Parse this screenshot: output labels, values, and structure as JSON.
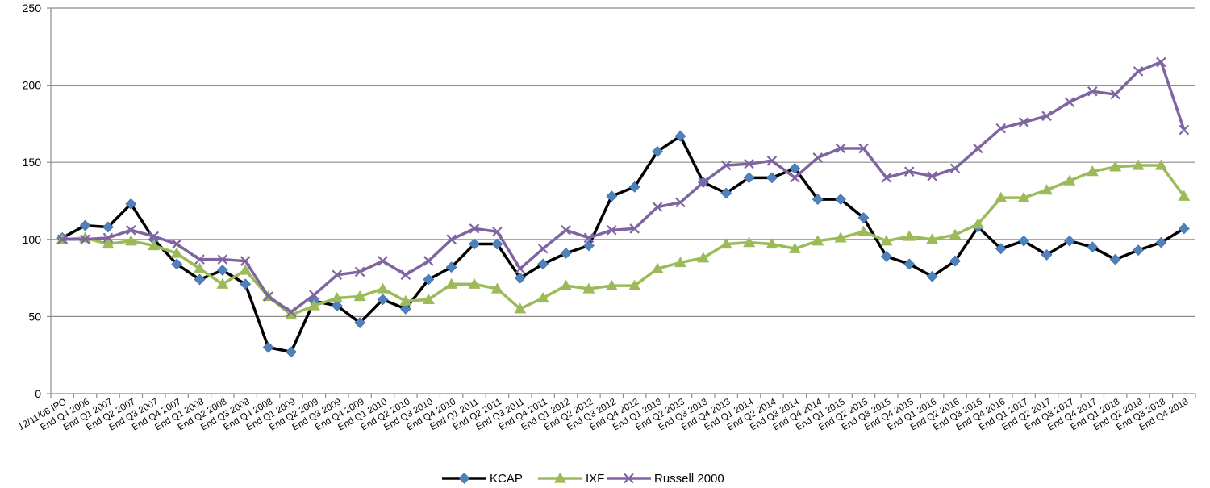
{
  "chart_data": {
    "type": "line",
    "title": "",
    "xlabel": "",
    "ylabel": "",
    "ylim": [
      0,
      250
    ],
    "yticks": [
      0,
      50,
      100,
      150,
      200,
      250
    ],
    "grid": "horizontal",
    "legend_position": "bottom",
    "categories": [
      "12/11/06 IPO",
      "End Q4 2006",
      "End Q1 2007",
      "End Q2 2007",
      "End Q3 2007",
      "End Q4 2007",
      "End Q1 2008",
      "End Q2 2008",
      "End Q3 2008",
      "End Q4 2008",
      "End Q1 2009",
      "End Q2 2009",
      "End Q3 2009",
      "End Q4 2009",
      "End Q1 2010",
      "End Q2 2010",
      "End Q3 2010",
      "End Q4 2010",
      "End Q1 2011",
      "End Q2 2011",
      "End Q3 2011",
      "End Q4 2011",
      "End Q1 2012",
      "End Q2 2012",
      "End Q3 2012",
      "End Q4 2012",
      "End Q1 2013",
      "End Q2 2013",
      "End Q3 2013",
      "End Q4 2013",
      "End Q1 2014",
      "End Q2 2014",
      "End Q3 2014",
      "End Q4 2014",
      "End Q1 2015",
      "End Q2 2015",
      "End Q3 2015",
      "End Q4 2015",
      "End Q1 2016",
      "End Q2 2016",
      "End Q3 2016",
      "End Q4 2016",
      "End Q1 2017",
      "End Q2 2017",
      "End Q3 2017",
      "End Q4 2017",
      "End Q1 2018",
      "End Q2 2018",
      "End Q3 2018",
      "End Q4 2018"
    ],
    "series": [
      {
        "name": "KCAP",
        "color": "#000000",
        "marker_color": "#4F81BD",
        "marker": "diamond",
        "values": [
          101,
          109,
          108,
          123,
          100,
          84,
          74,
          80,
          71,
          30,
          27,
          60,
          57,
          46,
          61,
          55,
          74,
          82,
          97,
          97,
          75,
          84,
          91,
          96,
          128,
          134,
          157,
          167,
          137,
          130,
          140,
          140,
          146,
          126,
          126,
          114,
          89,
          84,
          76,
          86,
          108,
          94,
          99,
          90,
          99,
          95,
          87,
          93,
          98,
          107
        ]
      },
      {
        "name": "IXF",
        "color": "#9BBB59",
        "marker_color": "#9BBB59",
        "marker": "triangle",
        "values": [
          100,
          101,
          97,
          99,
          96,
          91,
          81,
          71,
          80,
          63,
          51,
          57,
          62,
          63,
          68,
          60,
          61,
          71,
          71,
          68,
          55,
          62,
          70,
          68,
          70,
          70,
          81,
          85,
          88,
          97,
          98,
          97,
          94,
          99,
          101,
          105,
          99,
          102,
          100,
          103,
          110,
          127,
          127,
          132,
          138,
          144,
          147,
          148,
          148,
          128
        ]
      },
      {
        "name": "Russell 2000",
        "color": "#8064A2",
        "marker_color": "#8064A2",
        "marker": "x",
        "values": [
          100,
          100,
          101,
          106,
          102,
          97,
          87,
          87,
          86,
          63,
          53,
          64,
          77,
          79,
          86,
          77,
          86,
          100,
          107,
          105,
          81,
          94,
          106,
          101,
          106,
          107,
          121,
          124,
          137,
          148,
          149,
          151,
          140,
          153,
          159,
          159,
          140,
          144,
          141,
          146,
          159,
          172,
          176,
          180,
          189,
          196,
          194,
          209,
          215,
          171
        ]
      }
    ]
  }
}
